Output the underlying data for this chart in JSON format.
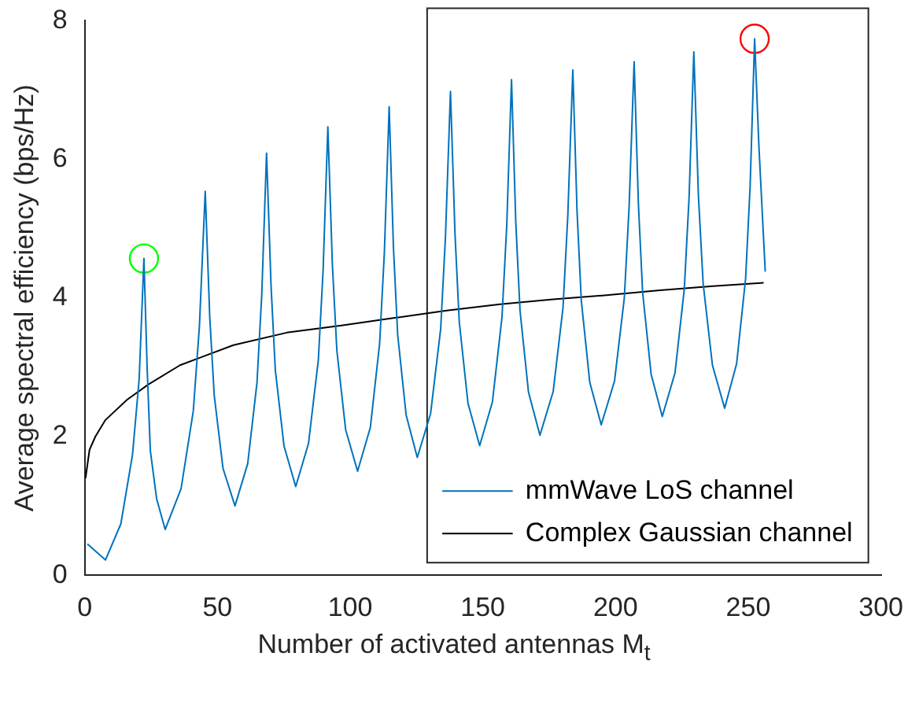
{
  "chart_data": {
    "type": "line",
    "xlabel": "Number of activated antennas M$_{t}$",
    "ylabel": "Average spectral efficiency (bps/Hz)",
    "xlim": [
      0,
      300
    ],
    "xticks": [
      0,
      50,
      100,
      150,
      200,
      250,
      300
    ],
    "ylim": [
      0,
      8
    ],
    "yticks": [
      0,
      2,
      4,
      6,
      8
    ],
    "grid": false,
    "legend": "bottom right",
    "marker": "none",
    "line_style": "solid",
    "series": [
      {
        "name": "mmWave LoS channel",
        "color": "#0072bd",
        "x": [
          1,
          7.8,
          13.6,
          18,
          20.5,
          22.3,
          23.5,
          24.7,
          27.1,
          30.3,
          36.3,
          40.9,
          43.2,
          45.4,
          47.1,
          48.8,
          52.1,
          56.6,
          61.4,
          64.9,
          66.7,
          68.5,
          70.2,
          71.8,
          75.1,
          79.5,
          84.3,
          88,
          89.8,
          91.6,
          93.3,
          95,
          98.3,
          102.8,
          107.6,
          111.1,
          112.9,
          114.7,
          116.3,
          117.9,
          121.1,
          125.3,
          130.3,
          134.1,
          135.9,
          137.8,
          139.5,
          141.1,
          144.4,
          148.8,
          153.6,
          157.2,
          159,
          160.8,
          162.4,
          164,
          167.2,
          171.5,
          176.5,
          180.2,
          182,
          183.9,
          185.5,
          187.1,
          190.3,
          194.6,
          199.6,
          203.3,
          205.1,
          207,
          208.6,
          210.2,
          213.4,
          217.6,
          222.4,
          225.9,
          227.7,
          229.5,
          231.2,
          233,
          236.5,
          241.1,
          245.6,
          249,
          250.7,
          252.4,
          254,
          256.4
        ],
        "values": [
          0.45,
          0.22,
          0.74,
          1.74,
          2.83,
          4.57,
          3.0,
          1.8,
          1.1,
          0.66,
          1.25,
          2.37,
          3.59,
          5.54,
          3.72,
          2.59,
          1.54,
          1.0,
          1.61,
          2.78,
          4.05,
          6.09,
          4.17,
          2.96,
          1.86,
          1.28,
          1.9,
          3.1,
          4.39,
          6.47,
          4.48,
          3.24,
          2.1,
          1.5,
          2.13,
          3.34,
          4.66,
          6.76,
          4.74,
          3.47,
          2.31,
          1.7,
          2.33,
          3.55,
          4.87,
          6.98,
          4.93,
          3.66,
          2.48,
          1.87,
          2.5,
          3.72,
          5.04,
          7.15,
          5.1,
          3.82,
          2.64,
          2.02,
          2.65,
          3.86,
          5.18,
          7.29,
          5.24,
          3.96,
          2.78,
          2.17,
          2.8,
          4.0,
          5.31,
          7.41,
          5.36,
          4.08,
          2.9,
          2.29,
          2.92,
          4.13,
          5.45,
          7.55,
          5.49,
          4.21,
          3.03,
          2.41,
          3.05,
          4.28,
          5.61,
          7.74,
          6.2,
          4.38
        ]
      },
      {
        "name": "Complex Gaussian channel",
        "color": "#000000",
        "x": [
          0.3,
          1.8,
          4,
          7.8,
          15.9,
          23.9,
          35.9,
          56,
          76.1,
          96.2,
          116.3,
          136.4,
          156.5,
          176.5,
          196.6,
          216.7,
          236.7,
          255.8
        ],
        "values": [
          1.4,
          1.81,
          2.0,
          2.24,
          2.53,
          2.75,
          3.03,
          3.32,
          3.5,
          3.6,
          3.71,
          3.82,
          3.91,
          3.98,
          4.04,
          4.11,
          4.17,
          4.22
        ]
      },
      {
        "type": "scatter",
        "marker": "circle",
        "color": "#00ff00",
        "x": [
          22.3
        ],
        "values": [
          4.57
        ]
      },
      {
        "type": "scatter",
        "marker": "circle",
        "color": "#ff0000",
        "x": [
          252.4
        ],
        "values": [
          7.74
        ]
      }
    ]
  }
}
